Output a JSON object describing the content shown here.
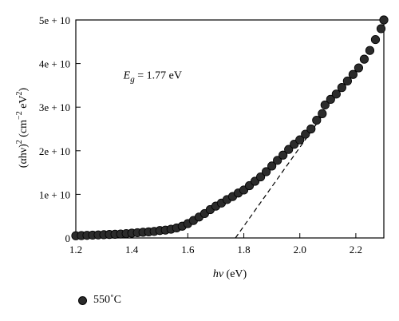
{
  "chart_data": {
    "type": "scatter",
    "xlabel_var": "hν",
    "xlabel_unit": " (eV)",
    "ylabel_main": "(αhν)",
    "ylabel_exp": "2",
    "ylabel_unit_pre": " (cm",
    "ylabel_unit_exp1": "−2",
    "ylabel_unit_mid": " eV",
    "ylabel_unit_exp2": "2",
    "ylabel_unit_post": ")",
    "annotation": {
      "var": "E",
      "sub": "g",
      "text": " = 1.77 eV",
      "x": 1.37,
      "y": 36500000000
    },
    "xlim": [
      1.2,
      2.3
    ],
    "ylim": [
      0,
      50000000000
    ],
    "x_ticks": [
      {
        "value": 1.2,
        "label": "1.2"
      },
      {
        "value": 1.4,
        "label": "1.4"
      },
      {
        "value": 1.6,
        "label": "1.6"
      },
      {
        "value": 1.8,
        "label": "1.8"
      },
      {
        "value": 2.0,
        "label": "2.0"
      },
      {
        "value": 2.2,
        "label": "2.2"
      }
    ],
    "y_ticks": [
      {
        "value": 0,
        "label": "0"
      },
      {
        "value": 10000000000,
        "label": "1e + 10"
      },
      {
        "value": 20000000000,
        "label": "2e + 10"
      },
      {
        "value": 30000000000,
        "label": "3e + 10"
      },
      {
        "value": 40000000000,
        "label": "4e + 10"
      },
      {
        "value": 50000000000,
        "label": "5e + 10"
      }
    ],
    "series": [
      {
        "name": "550°C",
        "color": "#2b2b2b",
        "points": [
          [
            1.2,
            500000000.0
          ],
          [
            1.22,
            550000000.0
          ],
          [
            1.24,
            600000000.0
          ],
          [
            1.26,
            650000000.0
          ],
          [
            1.28,
            700000000.0
          ],
          [
            1.3,
            750000000.0
          ],
          [
            1.32,
            800000000.0
          ],
          [
            1.34,
            850000000.0
          ],
          [
            1.36,
            900000000.0
          ],
          [
            1.38,
            1000000000.0
          ],
          [
            1.4,
            1100000000.0
          ],
          [
            1.42,
            1200000000.0
          ],
          [
            1.44,
            1300000000.0
          ],
          [
            1.46,
            1400000000.0
          ],
          [
            1.48,
            1500000000.0
          ],
          [
            1.5,
            1700000000.0
          ],
          [
            1.52,
            1800000000.0
          ],
          [
            1.54,
            2000000000.0
          ],
          [
            1.56,
            2300000000.0
          ],
          [
            1.58,
            2700000000.0
          ],
          [
            1.6,
            3300000000.0
          ],
          [
            1.62,
            4000000000.0
          ],
          [
            1.64,
            4800000000.0
          ],
          [
            1.66,
            5600000000.0
          ],
          [
            1.68,
            6500000000.0
          ],
          [
            1.7,
            7300000000.0
          ],
          [
            1.72,
            8000000000.0
          ],
          [
            1.74,
            8800000000.0
          ],
          [
            1.76,
            9500000000.0
          ],
          [
            1.78,
            10300000000.0
          ],
          [
            1.8,
            11000000000.0
          ],
          [
            1.82,
            12000000000.0
          ],
          [
            1.84,
            13000000000.0
          ],
          [
            1.86,
            14000000000.0
          ],
          [
            1.88,
            15200000000.0
          ],
          [
            1.9,
            16500000000.0
          ],
          [
            1.92,
            17800000000.0
          ],
          [
            1.94,
            19000000000.0
          ],
          [
            1.96,
            20300000000.0
          ],
          [
            1.98,
            21500000000.0
          ],
          [
            2.0,
            22500000000.0
          ],
          [
            2.02,
            23800000000.0
          ],
          [
            2.04,
            25000000000.0
          ],
          [
            2.06,
            27000000000.0
          ],
          [
            2.08,
            28500000000.0
          ],
          [
            2.09,
            30500000000.0
          ],
          [
            2.11,
            31800000000.0
          ],
          [
            2.13,
            33000000000.0
          ],
          [
            2.15,
            34500000000.0
          ],
          [
            2.17,
            36000000000.0
          ],
          [
            2.19,
            37500000000.0
          ],
          [
            2.21,
            39000000000.0
          ],
          [
            2.23,
            41000000000.0
          ],
          [
            2.25,
            43000000000.0
          ],
          [
            2.27,
            45500000000.0
          ],
          [
            2.29,
            48000000000.0
          ],
          [
            2.3,
            50000000000.0
          ]
        ]
      }
    ],
    "tangent_line": {
      "x1": 1.77,
      "y1": 0,
      "x2": 2.08,
      "y2": 28000000000
    }
  },
  "legend": {
    "label": "550˚C"
  }
}
